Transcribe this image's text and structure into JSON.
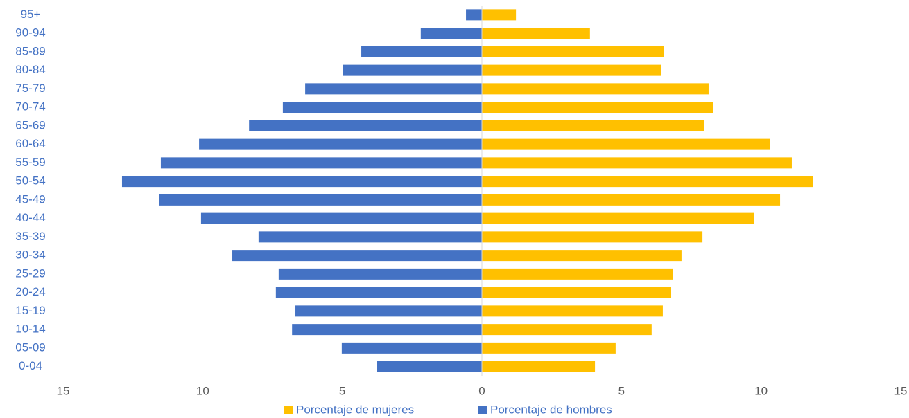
{
  "chart_data": {
    "type": "bar",
    "orientation": "horizontal",
    "stacked": true,
    "categories": [
      "0-04",
      "05-09",
      "10-14",
      "15-19",
      "20-24",
      "25-29",
      "30-34",
      "35-39",
      "40-44",
      "45-49",
      "50-54",
      "55-59",
      "60-64",
      "65-69",
      "70-74",
      "75-79",
      "80-84",
      "85-89",
      "90-94",
      "95+"
    ],
    "series": [
      {
        "name": "Porcentaje de mujeres",
        "color": "#ffc000",
        "values": [
          4.05,
          4.79,
          6.08,
          6.48,
          6.78,
          6.83,
          7.15,
          7.9,
          9.76,
          10.68,
          11.85,
          11.1,
          10.33,
          7.95,
          8.27,
          8.12,
          6.41,
          6.53,
          3.87,
          1.22
        ]
      },
      {
        "name": "Porcentaje de hombres",
        "color": "#4472c4",
        "values": [
          -3.75,
          -5.02,
          -6.8,
          -6.68,
          -7.38,
          -7.28,
          -8.94,
          -8.0,
          -10.06,
          -11.55,
          -12.89,
          -11.5,
          -10.13,
          -8.34,
          -7.13,
          -6.33,
          -4.99,
          -4.32,
          -2.19,
          -0.57
        ]
      }
    ],
    "xlim": [
      -15,
      15
    ],
    "xticks": [
      {
        "value": -15,
        "label": "15"
      },
      {
        "value": -10,
        "label": "10"
      },
      {
        "value": -5,
        "label": "5"
      },
      0,
      5,
      10,
      15
    ],
    "grid": false,
    "legend": "bottom"
  }
}
